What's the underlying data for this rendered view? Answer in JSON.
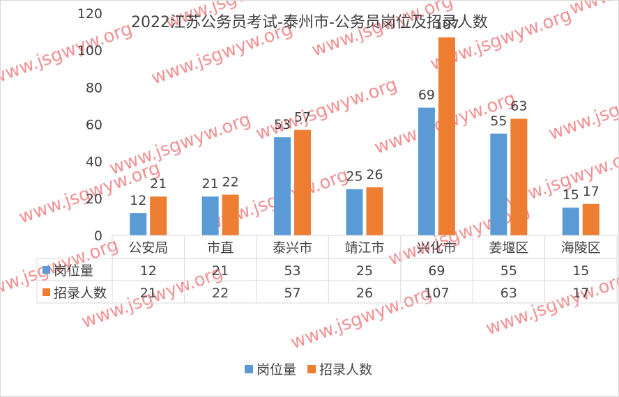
{
  "chart_data": {
    "type": "bar",
    "title": "2022江苏公务员考试-泰州市-公务员岗位及招录人数",
    "categories": [
      "公安局",
      "市直",
      "泰兴市",
      "靖江市",
      "兴化市",
      "姜堰区",
      "海陵区"
    ],
    "series": [
      {
        "name": "岗位量",
        "values": [
          12,
          21,
          53,
          25,
          69,
          55,
          15
        ],
        "color": "#5b9bd5"
      },
      {
        "name": "招录人数",
        "values": [
          21,
          22,
          57,
          26,
          107,
          63,
          17
        ],
        "color": "#ed7d31"
      }
    ],
    "yticks": [
      "0",
      "20",
      "40",
      "60",
      "80",
      "100",
      "120"
    ],
    "ylim": [
      0,
      120
    ],
    "grid": false,
    "data_table": true,
    "legend_position": "bottom"
  },
  "watermark": "www.jsgwyw.org"
}
